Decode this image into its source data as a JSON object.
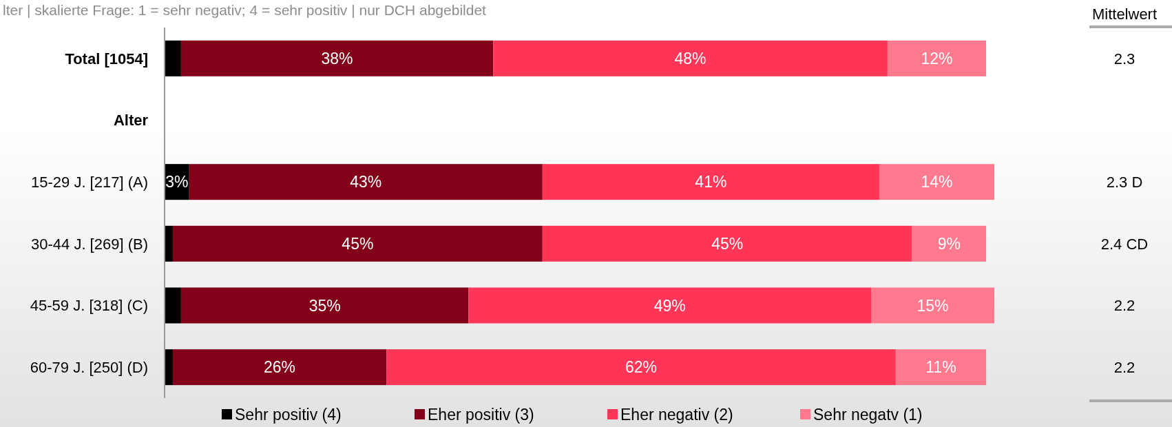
{
  "chart_data": {
    "type": "bar",
    "orientation": "horizontal",
    "stacked": true,
    "subtitle": "lter | skalierte Frage: 1 = sehr negativ; 4 = sehr positiv | nur DCH abgebildet",
    "categories": [
      "Total [1054]",
      "Alter",
      "15-29 J. [217] (A)",
      "30-44 J. [269] (B)",
      "45-59 J. [318] (C)",
      "60-79 J. [250] (D)"
    ],
    "series": [
      {
        "name": "Sehr positiv (4)",
        "color": "#000000",
        "values": [
          2,
          null,
          3,
          1,
          2,
          1
        ],
        "value_labels": [
          null,
          null,
          "3%",
          null,
          null,
          null
        ]
      },
      {
        "name": "Eher positiv (3)",
        "color": "#820019",
        "values": [
          38,
          null,
          43,
          45,
          35,
          26
        ],
        "value_labels": [
          "38%",
          null,
          "43%",
          "45%",
          "35%",
          "26%"
        ]
      },
      {
        "name": "Eher negativ (2)",
        "color": "#ff3657",
        "values": [
          48,
          null,
          41,
          45,
          49,
          62
        ],
        "value_labels": [
          "48%",
          null,
          "41%",
          "45%",
          "49%",
          "62%"
        ]
      },
      {
        "name": "Sehr negatv (1)",
        "color": "#ff7a8f",
        "values": [
          12,
          null,
          14,
          9,
          15,
          11
        ],
        "value_labels": [
          "12%",
          null,
          "14%",
          "9%",
          "15%",
          "11%"
        ]
      }
    ],
    "annotations": [
      "Mittelwert",
      "2.3",
      "2.3 D",
      "2.4 CD",
      "2.2",
      "2.2"
    ],
    "legend": "bottom"
  }
}
